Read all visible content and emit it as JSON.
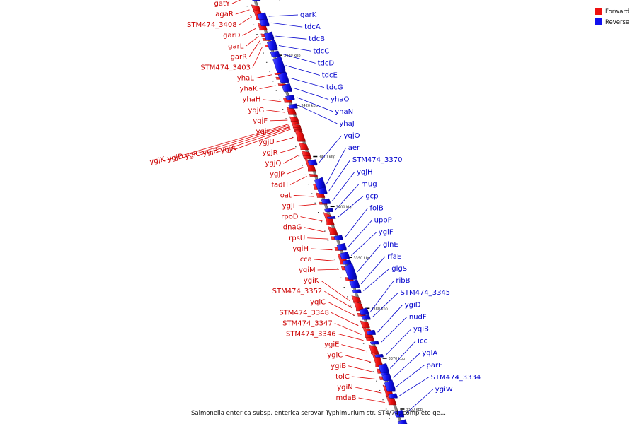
{
  "caption": "Salmonella enterica subsp. enterica serovar Typhimurium str. ST4/74, complete ge...",
  "legend": [
    {
      "label": "Forward",
      "color": "#ee1111"
    },
    {
      "label": "Reverse",
      "color": "#1111ee"
    }
  ],
  "colors": {
    "forward": "#ee1111",
    "reverse": "#1111ee",
    "backbone": "#888888"
  },
  "kbp_ticks": [
    {
      "t": 0.006,
      "label": "3440 kbp"
    },
    {
      "t": 0.138,
      "label": "3430 kbp"
    },
    {
      "t": 0.254,
      "label": "3420 kbp"
    },
    {
      "t": 0.373,
      "label": "3410 kbp"
    },
    {
      "t": 0.489,
      "label": "3400 kbp"
    },
    {
      "t": 0.607,
      "label": "3390 kbp"
    },
    {
      "t": 0.725,
      "label": "3380 kbp"
    },
    {
      "t": 0.841,
      "label": "3370 kbp"
    },
    {
      "t": 0.959,
      "label": "3360 kbp"
    }
  ],
  "forward_genes": [
    {
      "label": "gatY",
      "t": 0.0,
      "len": 0.006
    },
    {
      "label": "agaR",
      "t": 0.025,
      "len": 0.012
    },
    {
      "label": "STM474_3408",
      "t": 0.038,
      "len": 0.018
    },
    {
      "label": "garD",
      "t": 0.068,
      "len": 0.012
    },
    {
      "label": "garL",
      "t": 0.09,
      "len": 0.005
    },
    {
      "label": "garR",
      "t": 0.1,
      "len": 0.004
    },
    {
      "label": "STM474_3403",
      "t": 0.115,
      "len": 0.004
    },
    {
      "label": "yhaL",
      "t": 0.18,
      "len": 0.003
    },
    {
      "label": "yhaK",
      "t": 0.205,
      "len": 0.003
    },
    {
      "label": "yhaH",
      "t": 0.24,
      "len": 0.008
    },
    {
      "label": "yqjG",
      "t": 0.263,
      "len": 0.012
    },
    {
      "label": "yqjF",
      "t": 0.283,
      "len": 0.008
    },
    {
      "label": "yqjE",
      "t": 0.3,
      "len": 0.006
    },
    {
      "label": "ygjU",
      "t": 0.318,
      "len": 0.018
    },
    {
      "label": "ygjR",
      "t": 0.345,
      "len": 0.012
    },
    {
      "label": "ygjQ",
      "t": 0.363,
      "len": 0.008
    },
    {
      "label": "ygjP",
      "t": 0.385,
      "len": 0.022
    },
    {
      "label": "fadH",
      "t": 0.415,
      "len": 0.004
    },
    {
      "label": "oat",
      "t": 0.46,
      "len": 0.008
    },
    {
      "label": "ygjI",
      "t": 0.48,
      "len": 0.004
    },
    {
      "label": "rpoD",
      "t": 0.51,
      "len": 0.022
    },
    {
      "label": "dnaG",
      "t": 0.54,
      "len": 0.014
    },
    {
      "label": "rpsU",
      "t": 0.56,
      "len": 0.005
    },
    {
      "label": "ygiH",
      "t": 0.585,
      "len": 0.006
    },
    {
      "label": "cca",
      "t": 0.605,
      "len": 0.018
    },
    {
      "label": "ygiM",
      "t": 0.63,
      "len": 0.006
    },
    {
      "label": "ygiK",
      "t": 0.7,
      "len": 0.012
    },
    {
      "label": "STM474_3352",
      "t": 0.715,
      "len": 0.016
    },
    {
      "label": "yqiC",
      "t": 0.738,
      "len": 0.005
    },
    {
      "label": "STM474_3348",
      "t": 0.758,
      "len": 0.012
    },
    {
      "label": "STM474_3347",
      "t": 0.775,
      "len": 0.018
    },
    {
      "label": "STM474_3346",
      "t": 0.795,
      "len": 0.006
    },
    {
      "label": "ygiE",
      "t": 0.815,
      "len": 0.016
    },
    {
      "label": "ygiC",
      "t": 0.835,
      "len": 0.026
    },
    {
      "label": "ygiB",
      "t": 0.868,
      "len": 0.008
    },
    {
      "label": "tolC",
      "t": 0.885,
      "len": 0.006
    },
    {
      "label": "ygiN",
      "t": 0.91,
      "len": 0.02
    },
    {
      "label": "mdaB",
      "t": 0.935,
      "len": 0.014
    }
  ],
  "forward_unlabeled": [
    {
      "t": 0.19,
      "len": 0.004
    },
    {
      "t": 0.27,
      "len": 0.006
    },
    {
      "t": 0.292,
      "len": 0.005
    },
    {
      "t": 0.307,
      "len": 0.004
    },
    {
      "t": 0.312,
      "len": 0.004
    },
    {
      "t": 0.33,
      "len": 0.008
    },
    {
      "t": 0.372,
      "len": 0.006
    },
    {
      "t": 0.44,
      "len": 0.01
    },
    {
      "t": 0.655,
      "len": 0.006
    }
  ],
  "reverse_genes": [
    {
      "label": "garK",
      "t": 0.04,
      "len": 0.012
    },
    {
      "label": "tdcA",
      "t": 0.055,
      "len": 0.012
    },
    {
      "label": "tdcB",
      "t": 0.085,
      "len": 0.014
    },
    {
      "label": "tdcC",
      "t": 0.105,
      "len": 0.018
    },
    {
      "label": "tdcD",
      "t": 0.128,
      "len": 0.01
    },
    {
      "label": "tdcE",
      "t": 0.145,
      "len": 0.03
    },
    {
      "label": "tdcG",
      "t": 0.18,
      "len": 0.018
    },
    {
      "label": "yhaO",
      "t": 0.205,
      "len": 0.014
    },
    {
      "label": "yhaN",
      "t": 0.23,
      "len": 0.008
    },
    {
      "label": "yhaJ",
      "t": 0.25,
      "len": 0.008
    },
    {
      "label": "ygjO",
      "t": 0.38,
      "len": 0.01
    },
    {
      "label": "aer",
      "t": 0.425,
      "len": 0.02
    },
    {
      "label": "STM474_3370",
      "t": 0.445,
      "len": 0.012
    },
    {
      "label": "yqjH",
      "t": 0.47,
      "len": 0.008
    },
    {
      "label": "mug",
      "t": 0.492,
      "len": 0.006
    },
    {
      "label": "gcp",
      "t": 0.51,
      "len": 0.004
    },
    {
      "label": "folB",
      "t": 0.555,
      "len": 0.008
    },
    {
      "label": "uppP",
      "t": 0.575,
      "len": 0.012
    },
    {
      "label": "ygiF",
      "t": 0.595,
      "len": 0.012
    },
    {
      "label": "glnE",
      "t": 0.625,
      "len": 0.03
    },
    {
      "label": "rfaE",
      "t": 0.66,
      "len": 0.014
    },
    {
      "label": "glgS",
      "t": 0.68,
      "len": 0.006
    },
    {
      "label": "ribB",
      "t": 0.725,
      "len": 0.012
    },
    {
      "label": "STM474_3345",
      "t": 0.74,
      "len": 0.008
    },
    {
      "label": "ygiD",
      "t": 0.775,
      "len": 0.008
    },
    {
      "label": "nudF",
      "t": 0.8,
      "len": 0.005
    },
    {
      "label": "yqiB",
      "t": 0.83,
      "len": 0.005
    },
    {
      "label": "icc",
      "t": 0.855,
      "len": 0.016
    },
    {
      "label": "yqiA",
      "t": 0.878,
      "len": 0.012
    },
    {
      "label": "parE",
      "t": 0.895,
      "len": 0.02
    },
    {
      "label": "STM474_3334",
      "t": 0.922,
      "len": 0.008
    },
    {
      "label": "ygiW",
      "t": 0.962,
      "len": 0.012
    }
  ],
  "reverse_unlabeled": [
    {
      "t": 0.0,
      "len": 0.008
    },
    {
      "t": 0.117,
      "len": 0.006
    },
    {
      "t": 0.168,
      "len": 0.008
    },
    {
      "t": 0.612,
      "len": 0.008
    },
    {
      "t": 0.862,
      "len": 0.008
    },
    {
      "t": 0.87,
      "len": 0.006
    },
    {
      "t": 0.985,
      "len": 0.015
    }
  ],
  "fan_labels": [
    {
      "label": "ygjK",
      "t": 0.296
    },
    {
      "label": "ygjD",
      "t": 0.299
    },
    {
      "label": "ygjC",
      "t": 0.302
    },
    {
      "label": "ygjB",
      "t": 0.305
    },
    {
      "label": "ygjA",
      "t": 0.308
    }
  ]
}
